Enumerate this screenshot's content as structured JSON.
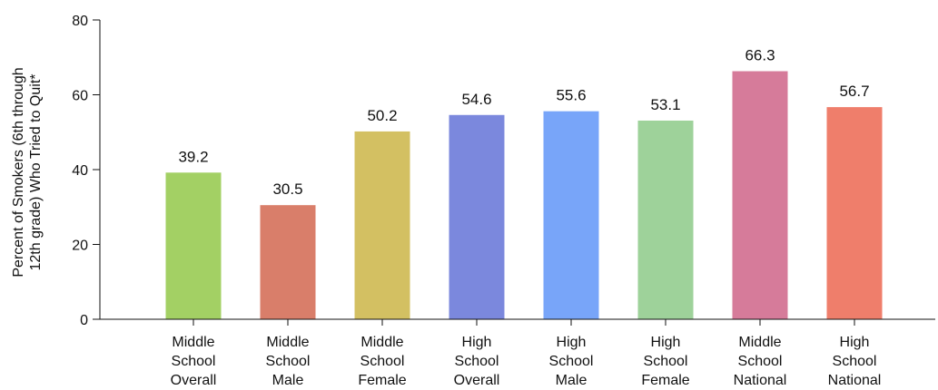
{
  "chart_data": {
    "type": "bar",
    "title": "",
    "xlabel": "",
    "ylabel_lines": [
      "Percent of Smokers (6th through",
      "12th grade) Who Tried to Quit*"
    ],
    "ylim": [
      0,
      80
    ],
    "yticks": [
      0,
      20,
      40,
      60,
      80
    ],
    "grid": false,
    "categories": [
      [
        "Middle",
        "School",
        "Overall"
      ],
      [
        "Middle",
        "School",
        "Male"
      ],
      [
        "Middle",
        "School",
        "Female"
      ],
      [
        "High",
        "School",
        "Overall"
      ],
      [
        "High",
        "School",
        "Male"
      ],
      [
        "High",
        "School",
        "Female"
      ],
      [
        "Middle",
        "School",
        "National"
      ],
      [
        "High",
        "School",
        "National"
      ]
    ],
    "values": [
      39.2,
      30.5,
      50.2,
      54.6,
      55.6,
      53.1,
      66.3,
      56.7
    ],
    "value_labels": [
      "39.2",
      "30.5",
      "50.2",
      "54.6",
      "55.6",
      "53.1",
      "66.3",
      "56.7"
    ],
    "colors": [
      "#a3d064",
      "#d97e6a",
      "#d3c062",
      "#7b88dd",
      "#78a5f9",
      "#9ed29a",
      "#d67b9a",
      "#ef7e6b"
    ]
  }
}
